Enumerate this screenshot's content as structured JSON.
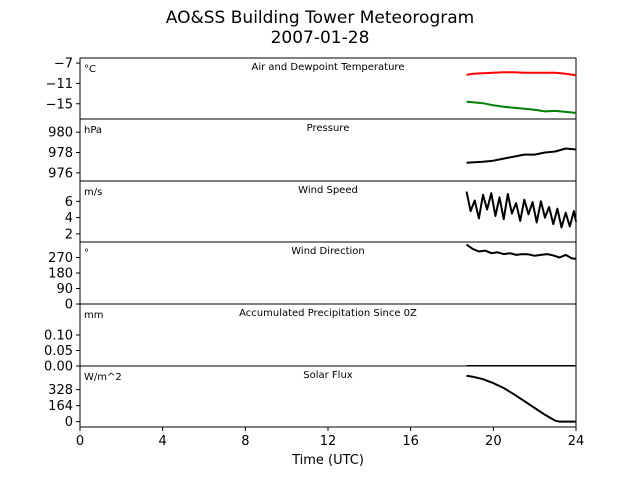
{
  "figure": {
    "title": "AO&SS Building Tower Meteorogram",
    "subtitle": "2007-01-28",
    "xlabel": "Time (UTC)"
  },
  "chart_data": [
    {
      "type": "line",
      "title": "Air and Dewpoint Temperature",
      "unit": "°C",
      "xlim": [
        0,
        24
      ],
      "ylim": [
        -18,
        -6
      ],
      "yticks": [
        -7,
        -11,
        -15
      ],
      "ytick_labels": [
        "−7",
        "−11",
        "−15"
      ],
      "series": [
        {
          "color": "#ff0000",
          "x": [
            18.7,
            19.0,
            19.5,
            20.0,
            20.5,
            21.0,
            21.5,
            22.0,
            22.5,
            23.0,
            23.5,
            24.0
          ],
          "y": [
            -9.3,
            -9.1,
            -9.0,
            -8.9,
            -8.8,
            -8.8,
            -8.9,
            -8.9,
            -8.9,
            -8.9,
            -9.1,
            -9.4
          ]
        },
        {
          "color": "#008000",
          "x": [
            18.7,
            19.0,
            19.5,
            20.0,
            20.5,
            21.0,
            21.5,
            22.0,
            22.5,
            23.0,
            23.5,
            24.0
          ],
          "y": [
            -14.6,
            -14.7,
            -14.9,
            -15.3,
            -15.6,
            -15.8,
            -16.0,
            -16.2,
            -16.5,
            -16.4,
            -16.6,
            -16.8
          ]
        }
      ]
    },
    {
      "type": "line",
      "title": "Pressure",
      "unit": "hPa",
      "xlim": [
        0,
        24
      ],
      "ylim": [
        975.2,
        981.3
      ],
      "yticks": [
        980,
        978,
        976
      ],
      "ytick_labels": [
        "980",
        "978",
        "976"
      ],
      "series": [
        {
          "color": "#000000",
          "x": [
            18.7,
            19.5,
            20.0,
            20.5,
            21.0,
            21.5,
            22.0,
            22.5,
            23.0,
            23.5,
            24.0
          ],
          "y": [
            977.0,
            977.1,
            977.2,
            977.4,
            977.6,
            977.8,
            977.8,
            978.0,
            978.1,
            978.4,
            978.3
          ]
        }
      ]
    },
    {
      "type": "line",
      "title": "Wind Speed",
      "unit": "m/s",
      "xlim": [
        0,
        24
      ],
      "ylim": [
        1.0,
        8.5
      ],
      "yticks": [
        6,
        4,
        2
      ],
      "ytick_labels": [
        "6",
        "4",
        "2"
      ],
      "series": [
        {
          "color": "#000000",
          "x": [
            18.7,
            18.9,
            19.1,
            19.3,
            19.5,
            19.7,
            19.9,
            20.1,
            20.3,
            20.5,
            20.7,
            20.9,
            21.1,
            21.3,
            21.5,
            21.7,
            21.9,
            22.1,
            22.3,
            22.5,
            22.7,
            22.9,
            23.1,
            23.3,
            23.5,
            23.7,
            23.9,
            24.0
          ],
          "y": [
            7.2,
            4.8,
            6.1,
            3.9,
            6.8,
            5.0,
            7.0,
            4.2,
            6.5,
            3.8,
            6.9,
            4.5,
            5.8,
            3.6,
            6.2,
            4.4,
            5.9,
            3.4,
            6.0,
            4.0,
            5.3,
            3.2,
            5.1,
            2.8,
            4.6,
            2.9,
            4.8,
            3.5
          ]
        }
      ]
    },
    {
      "type": "line",
      "title": "Wind Direction",
      "unit": "°",
      "xlim": [
        0,
        24
      ],
      "ylim": [
        0,
        360
      ],
      "yticks": [
        270,
        180,
        90,
        0
      ],
      "ytick_labels": [
        "270",
        "180",
        "90",
        "0"
      ],
      "series": [
        {
          "color": "#000000",
          "x": [
            18.7,
            19.0,
            19.3,
            19.6,
            19.9,
            20.2,
            20.5,
            20.8,
            21.1,
            21.4,
            21.7,
            22.0,
            22.3,
            22.6,
            22.9,
            23.2,
            23.5,
            23.8,
            24.0
          ],
          "y": [
            345,
            320,
            305,
            310,
            295,
            300,
            290,
            295,
            285,
            290,
            288,
            280,
            285,
            290,
            282,
            270,
            285,
            265,
            262
          ]
        }
      ]
    },
    {
      "type": "line",
      "title": "Accumulated Precipitation Since 0Z",
      "unit": "mm",
      "xlim": [
        0,
        24
      ],
      "ylim": [
        0,
        0.2
      ],
      "yticks": [
        0.1,
        0.05,
        0.0
      ],
      "ytick_labels": [
        "0.10",
        "0.05",
        "0.00"
      ],
      "series": [
        {
          "color": "#000000",
          "x": [
            18.7,
            24.0
          ],
          "y": [
            0.0,
            0.0
          ]
        }
      ]
    },
    {
      "type": "line",
      "title": "Solar Flux",
      "unit": "W/m^2",
      "xlim": [
        0,
        24
      ],
      "ylim": [
        -55,
        570
      ],
      "yticks": [
        328,
        164,
        0
      ],
      "ytick_labels": [
        "328",
        "164",
        "0"
      ],
      "series": [
        {
          "color": "#000000",
          "x": [
            18.7,
            19.0,
            19.5,
            20.0,
            20.5,
            21.0,
            21.5,
            22.0,
            22.5,
            23.0,
            23.2,
            23.5,
            24.0
          ],
          "y": [
            470,
            460,
            435,
            395,
            345,
            280,
            210,
            140,
            70,
            10,
            0,
            0,
            0
          ]
        }
      ]
    }
  ],
  "x_axis": {
    "ticks": [
      0,
      4,
      8,
      12,
      16,
      20,
      24
    ],
    "tick_labels": [
      "0",
      "4",
      "8",
      "12",
      "16",
      "20",
      "24"
    ]
  }
}
